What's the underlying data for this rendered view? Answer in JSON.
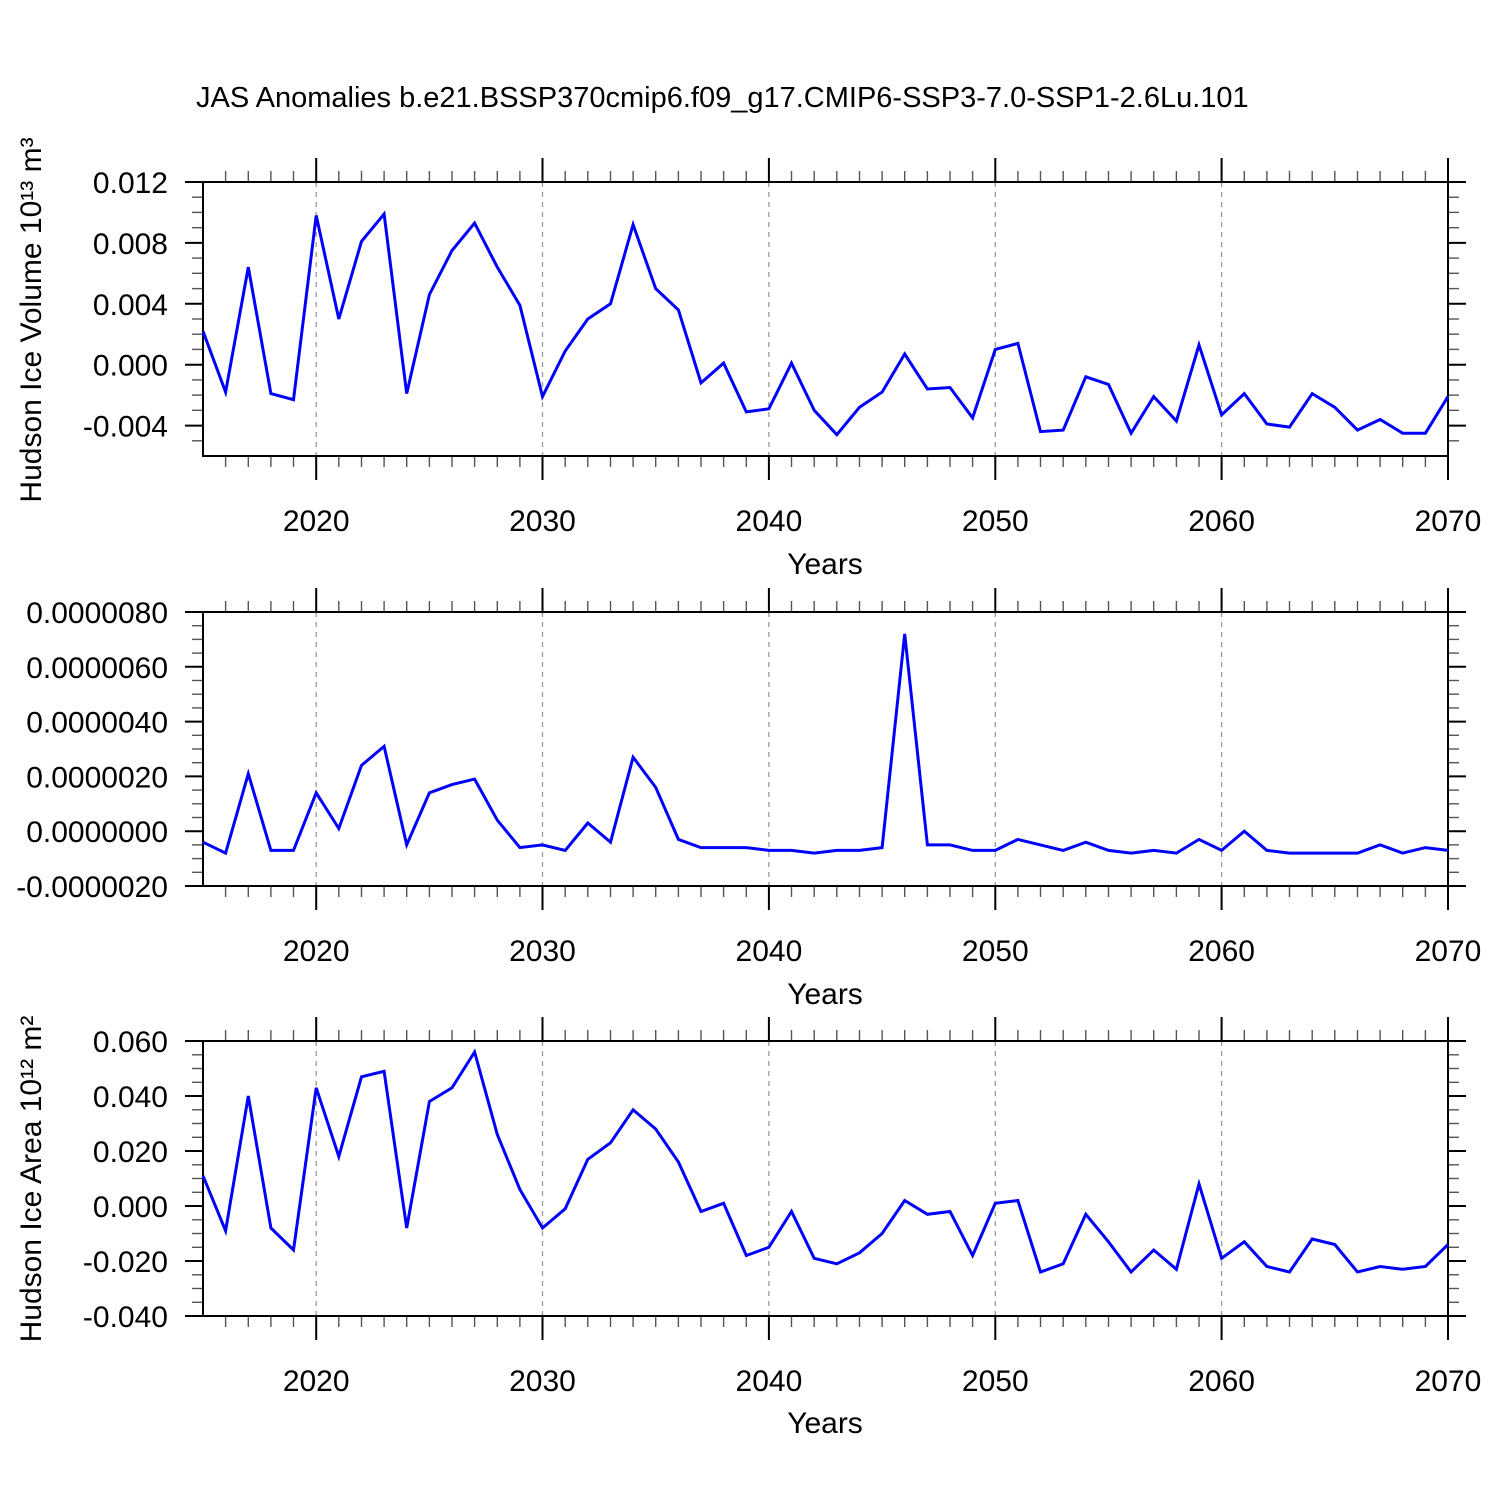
{
  "chart_data": {
    "type": "line",
    "title": "JAS Anomalies b.e21.BSSP370cmip6.f09_g17.CMIP6-SSP3-7.0-SSP1-2.6Lu.101",
    "line_color": "#0000ff",
    "axis_color": "#000000",
    "grid_color": "#999999",
    "legend": "none",
    "grid": "vertical-dashed-at-decades",
    "x": {
      "lim": [
        2015,
        2070
      ],
      "major_ticks": [
        2020,
        2030,
        2040,
        2050,
        2060,
        2070
      ],
      "grid_years": [
        2020,
        2030,
        2040,
        2050,
        2060
      ],
      "minor_step": 1,
      "years": [
        2015,
        2016,
        2017,
        2018,
        2019,
        2020,
        2021,
        2022,
        2023,
        2024,
        2025,
        2026,
        2027,
        2028,
        2029,
        2030,
        2031,
        2032,
        2033,
        2034,
        2035,
        2036,
        2037,
        2038,
        2039,
        2040,
        2041,
        2042,
        2043,
        2044,
        2045,
        2046,
        2047,
        2048,
        2049,
        2050,
        2051,
        2052,
        2053,
        2054,
        2055,
        2056,
        2057,
        2058,
        2059,
        2060,
        2061,
        2062,
        2063,
        2064,
        2065,
        2066,
        2067,
        2068,
        2069,
        2070
      ]
    },
    "panels": [
      {
        "name": "hudson-ice-volume",
        "ylabel": "Hudson Ice Volume 10¹³ m³",
        "xlabel": "Years",
        "ylim": [
          -0.006,
          0.012
        ],
        "yticks": [
          0.012,
          0.008,
          0.004,
          0.0,
          -0.004
        ],
        "ytick_labels": [
          "0.012",
          "0.008",
          "0.004",
          "0.000",
          "-0.004"
        ],
        "minor_step": 0.001,
        "values": [
          0.0022,
          -0.0018,
          0.0064,
          -0.0019,
          -0.0023,
          0.0098,
          0.003,
          0.0081,
          0.0099,
          -0.0019,
          0.0046,
          0.0075,
          0.0093,
          0.0064,
          0.0039,
          -0.0021,
          0.0009,
          0.003,
          0.004,
          0.0092,
          0.005,
          0.0036,
          -0.0012,
          0.0001,
          -0.0031,
          -0.0029,
          0.0001,
          -0.003,
          -0.0046,
          -0.0028,
          -0.0018,
          0.0007,
          -0.0016,
          -0.0015,
          -0.0035,
          0.001,
          0.0014,
          -0.0044,
          -0.0043,
          -0.0008,
          -0.0013,
          -0.0045,
          -0.0021,
          -0.0037,
          0.0013,
          -0.0033,
          -0.0019,
          -0.0039,
          -0.0041,
          -0.0019,
          -0.0028,
          -0.0043,
          -0.0036,
          -0.0045,
          -0.0045,
          -0.0021
        ]
      },
      {
        "name": "hudson-ice-middle-series",
        "ylabel": "",
        "xlabel": "Years",
        "ylim": [
          -2e-06,
          8e-06
        ],
        "yticks": [
          8e-06,
          6e-06,
          4e-06,
          2e-06,
          0.0,
          -2e-06
        ],
        "ytick_labels": [
          "0.0000080",
          "0.0000060",
          "0.0000040",
          "0.0000020",
          "0.0000000",
          "-0.0000020"
        ],
        "minor_step": 5e-07,
        "values": [
          -4e-07,
          -8e-07,
          2.1e-06,
          -7e-07,
          -7e-07,
          1.4e-06,
          1e-07,
          2.4e-06,
          3.1e-06,
          -5e-07,
          1.4e-06,
          1.7e-06,
          1.9e-06,
          4e-07,
          -6e-07,
          -5e-07,
          -7e-07,
          3e-07,
          -4e-07,
          2.7e-06,
          1.6e-06,
          -3e-07,
          -6e-07,
          -6e-07,
          -6e-07,
          -7e-07,
          -7e-07,
          -8e-07,
          -7e-07,
          -7e-07,
          -6e-07,
          7.2e-06,
          -5e-07,
          -5e-07,
          -7e-07,
          -7e-07,
          -3e-07,
          -5e-07,
          -7e-07,
          -4e-07,
          -7e-07,
          -8e-07,
          -7e-07,
          -8e-07,
          -3e-07,
          -7e-07,
          0.0,
          -7e-07,
          -8e-07,
          -8e-07,
          -8e-07,
          -8e-07,
          -5e-07,
          -8e-07,
          -6e-07,
          -7e-07
        ]
      },
      {
        "name": "hudson-ice-area",
        "ylabel": "Hudson Ice Area 10¹² m²",
        "xlabel": "Years",
        "ylim": [
          -0.04,
          0.06
        ],
        "yticks": [
          0.06,
          0.04,
          0.02,
          0.0,
          -0.02,
          -0.04
        ],
        "ytick_labels": [
          "0.060",
          "0.040",
          "0.020",
          "0.000",
          "-0.020",
          "-0.040"
        ],
        "minor_step": 0.005,
        "values": [
          0.011,
          -0.009,
          0.04,
          -0.008,
          -0.016,
          0.043,
          0.018,
          0.047,
          0.049,
          -0.008,
          0.038,
          0.043,
          0.056,
          0.026,
          0.006,
          -0.008,
          -0.001,
          0.017,
          0.023,
          0.035,
          0.028,
          0.016,
          -0.002,
          0.001,
          -0.018,
          -0.015,
          -0.002,
          -0.019,
          -0.021,
          -0.017,
          -0.01,
          0.002,
          -0.003,
          -0.002,
          -0.018,
          0.001,
          0.002,
          -0.024,
          -0.021,
          -0.003,
          -0.013,
          -0.024,
          -0.016,
          -0.023,
          0.008,
          -0.019,
          -0.013,
          -0.022,
          -0.024,
          -0.012,
          -0.014,
          -0.024,
          -0.022,
          -0.023,
          -0.022,
          -0.014
        ]
      }
    ]
  }
}
